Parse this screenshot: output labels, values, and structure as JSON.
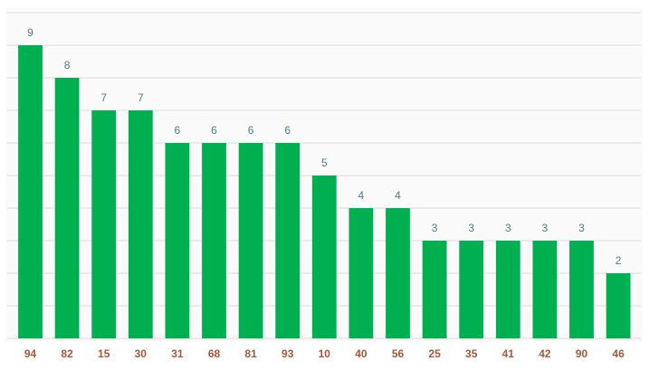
{
  "chart_data": {
    "type": "bar",
    "categories": [
      "94",
      "82",
      "15",
      "30",
      "31",
      "68",
      "81",
      "93",
      "10",
      "40",
      "56",
      "25",
      "35",
      "41",
      "42",
      "90",
      "46"
    ],
    "values": [
      9,
      8,
      7,
      7,
      6,
      6,
      6,
      6,
      5,
      4,
      4,
      3,
      3,
      3,
      3,
      3,
      2
    ],
    "color": "#00b050",
    "ylim": [
      0,
      10
    ],
    "yticks": [
      0,
      1,
      2,
      3,
      4,
      5,
      6,
      7,
      8,
      9,
      10
    ],
    "grid": true
  }
}
